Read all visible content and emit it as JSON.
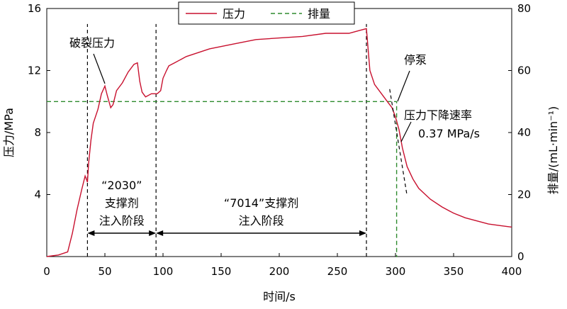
{
  "chart_data": {
    "type": "line",
    "title": "",
    "xlabel": "时间/s",
    "ylabel_left": "压力/MPa",
    "ylabel_right": "排量/(mL·min⁻¹)",
    "xlim": [
      0,
      400
    ],
    "ylim_left": [
      0,
      16
    ],
    "ylim_right": [
      0,
      80
    ],
    "xticks": [
      "0",
      "50",
      "100",
      "150",
      "200",
      "250",
      "300",
      "350",
      "400"
    ],
    "yticks_left": [
      "4",
      "8",
      "12",
      "16"
    ],
    "yticks_right": [
      "0",
      "20",
      "40",
      "60",
      "80"
    ],
    "grid": false,
    "legend_position": "top-center",
    "colors": {
      "pressure": "#c8102e",
      "flow": "#2e8b2e",
      "annotation": "#000000"
    },
    "series": [
      {
        "name": "压力",
        "axis": "left",
        "style": "solid",
        "x": [
          0,
          10,
          18,
          22,
          26,
          30,
          33,
          35,
          36,
          38,
          40,
          44,
          47,
          50,
          52,
          55,
          57,
          60,
          65,
          70,
          75,
          78,
          80,
          82,
          85,
          90,
          95,
          98,
          100,
          103,
          105,
          110,
          120,
          140,
          160,
          180,
          200,
          220,
          240,
          260,
          265,
          270,
          275,
          278,
          282,
          288,
          293,
          297,
          300,
          303,
          306,
          310,
          315,
          320,
          330,
          340,
          350,
          360,
          370,
          380,
          390,
          400
        ],
        "values": [
          0.0,
          0.1,
          0.3,
          1.5,
          3.0,
          4.3,
          5.2,
          4.8,
          6.0,
          7.5,
          8.6,
          9.5,
          10.5,
          11.0,
          10.4,
          9.6,
          9.8,
          10.7,
          11.2,
          11.9,
          12.4,
          12.5,
          11.3,
          10.6,
          10.3,
          10.5,
          10.5,
          10.7,
          11.5,
          12.0,
          12.3,
          12.5,
          12.9,
          13.4,
          13.7,
          14.0,
          14.1,
          14.2,
          14.4,
          14.4,
          14.5,
          14.6,
          14.7,
          12.0,
          11.1,
          10.5,
          10.0,
          9.6,
          9.0,
          8.2,
          7.0,
          5.8,
          5.0,
          4.4,
          3.7,
          3.2,
          2.8,
          2.5,
          2.3,
          2.1,
          2.0,
          1.9
        ]
      },
      {
        "name": "排量",
        "axis": "right",
        "style": "dashed",
        "x": [
          0,
          301,
          301,
          301.5
        ],
        "values": [
          50,
          50,
          0,
          0
        ]
      }
    ],
    "vertical_markers_x": [
      35,
      94,
      275
    ],
    "stage_arrows": [
      {
        "x_start": 35,
        "x_end": 94,
        "label": [
          "“2030”",
          "支撑剂",
          "注入阶段"
        ]
      },
      {
        "x_start": 94,
        "x_end": 275,
        "label": [
          "“7014”支撑剂",
          "注入阶段"
        ]
      }
    ],
    "annotations": {
      "breakdown": "破裂压力",
      "pump_stop": "停泵",
      "decline_rate": [
        "压力下降速率",
        "0.37 MPa/s"
      ]
    }
  }
}
